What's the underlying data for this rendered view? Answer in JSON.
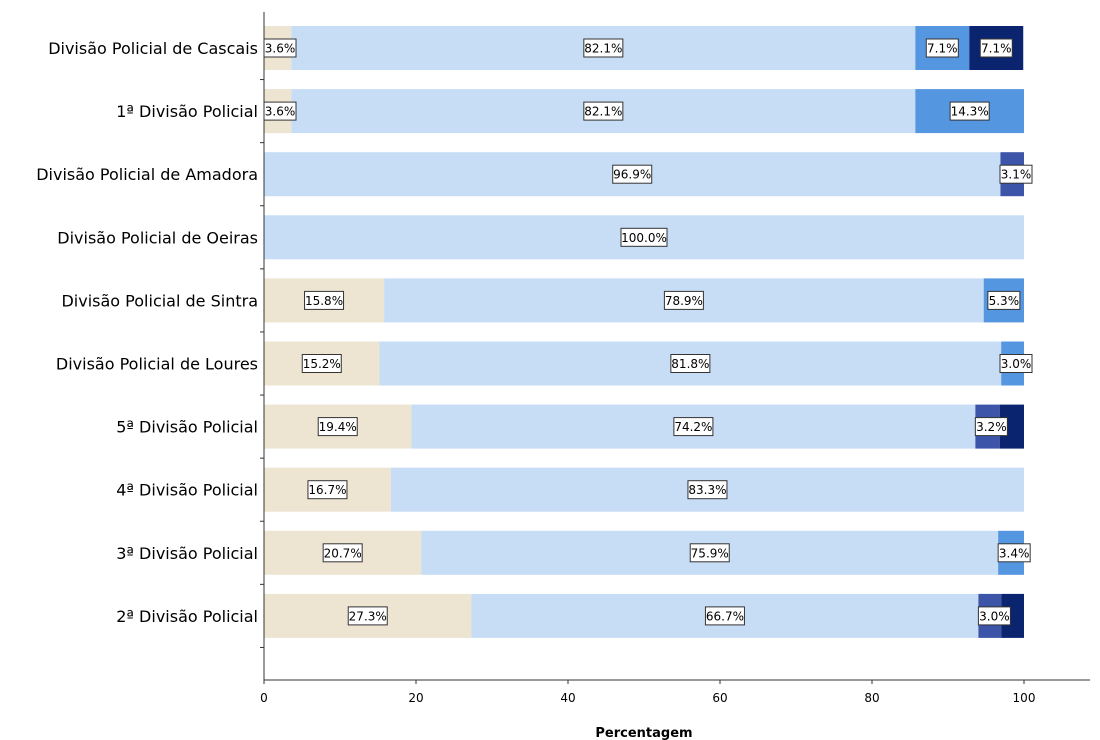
{
  "chart_data": {
    "type": "bar",
    "orientation": "horizontal",
    "stacked": true,
    "xlabel": "Percentagem",
    "xlim": [
      0,
      100
    ],
    "xticks": [
      0,
      20,
      40,
      60,
      80,
      100
    ],
    "grid": false,
    "legend": "none",
    "categories": [
      "Divisão Policial de Cascais",
      "1ª Divisão Policial",
      "Divisão Policial de Amadora",
      "Divisão Policial de Oeiras",
      "Divisão Policial de Sintra",
      "Divisão Policial de Loures",
      "5ª Divisão Policial",
      "4ª Divisão Policial",
      "3ª Divisão Policial",
      "2ª Divisão Policial"
    ],
    "series": [
      {
        "color": "#ede4d2",
        "values": [
          3.6,
          3.6,
          0,
          0,
          15.8,
          15.2,
          19.4,
          16.7,
          20.7,
          27.3
        ]
      },
      {
        "color": "#c6ddf5",
        "values": [
          82.1,
          82.1,
          96.9,
          100.0,
          78.9,
          81.8,
          74.2,
          83.3,
          75.9,
          66.7
        ]
      },
      {
        "color": "#5596e0",
        "values": [
          7.1,
          14.3,
          0,
          0,
          5.3,
          3.0,
          0,
          0,
          3.4,
          0
        ]
      },
      {
        "color": "#3d55a8",
        "values": [
          0,
          0,
          3.1,
          0,
          0,
          0,
          3.2,
          0,
          0,
          3.0
        ]
      },
      {
        "color": "#0b2470",
        "values": [
          7.1,
          0,
          0,
          0,
          0,
          0,
          3.2,
          0,
          0,
          3.0
        ]
      }
    ],
    "data_labels": [
      [
        "3.6%",
        "82.1%",
        "7.1%",
        null,
        "7.1%"
      ],
      [
        "3.6%",
        "82.1%",
        "14.3%",
        null,
        null
      ],
      [
        null,
        "96.9%",
        null,
        "3.1%",
        null
      ],
      [
        null,
        "100.0%",
        null,
        null,
        null
      ],
      [
        "15.8%",
        "78.9%",
        "5.3%",
        null,
        null
      ],
      [
        "15.2%",
        "81.8%",
        "3.0%",
        null,
        null
      ],
      [
        "19.4%",
        "74.2%",
        null,
        "3.2%",
        null
      ],
      [
        "16.7%",
        "83.3%",
        null,
        null,
        null
      ],
      [
        "20.7%",
        "75.9%",
        "3.4%",
        null,
        null
      ],
      [
        "27.3%",
        "66.7%",
        null,
        "3.0%",
        null
      ]
    ]
  }
}
